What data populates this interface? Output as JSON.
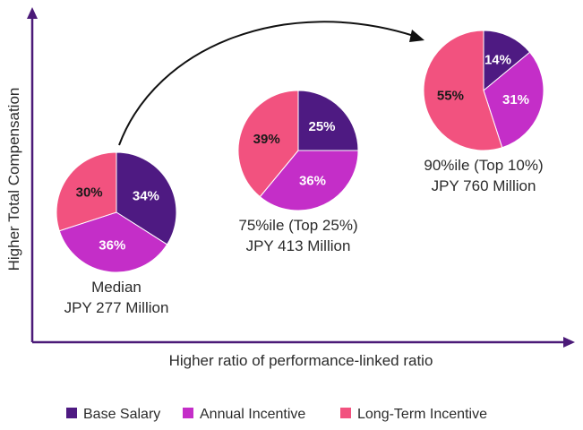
{
  "chart_data": {
    "type": "pie",
    "xlabel": "Higher ratio of performance-linked ratio",
    "ylabel": "Higher Total Compensation",
    "legend_position": "bottom",
    "series_names": [
      "Base Salary",
      "Annual Incentive",
      "Long-Term Incentive"
    ],
    "colors": {
      "Base Salary": "#4e1a82",
      "Annual Incentive": "#c42ec8",
      "Long-Term Incentive": "#f2527f"
    },
    "pies": [
      {
        "caption_line1": "Median",
        "caption_line2": "JPY 277 Million",
        "total_jpy_million": 277,
        "slices": [
          {
            "name": "Base Salary",
            "value": 34,
            "label": "34%"
          },
          {
            "name": "Annual Incentive",
            "value": 36,
            "label": "36%"
          },
          {
            "name": "Long-Term Incentive",
            "value": 30,
            "label": "30%"
          }
        ]
      },
      {
        "caption_line1": "75%ile (Top 25%)",
        "caption_line2": "JPY 413 Million",
        "total_jpy_million": 413,
        "slices": [
          {
            "name": "Base Salary",
            "value": 25,
            "label": "25%"
          },
          {
            "name": "Annual Incentive",
            "value": 36,
            "label": "36%"
          },
          {
            "name": "Long-Term Incentive",
            "value": 39,
            "label": "39%"
          }
        ]
      },
      {
        "caption_line1": "90%ile (Top 10%)",
        "caption_line2": "JPY 760 Million",
        "total_jpy_million": 760,
        "slices": [
          {
            "name": "Base Salary",
            "value": 14,
            "label": "14%"
          },
          {
            "name": "Annual Incentive",
            "value": 31,
            "label": "31%"
          },
          {
            "name": "Long-Term Incentive",
            "value": 55,
            "label": "55%"
          }
        ]
      }
    ]
  }
}
